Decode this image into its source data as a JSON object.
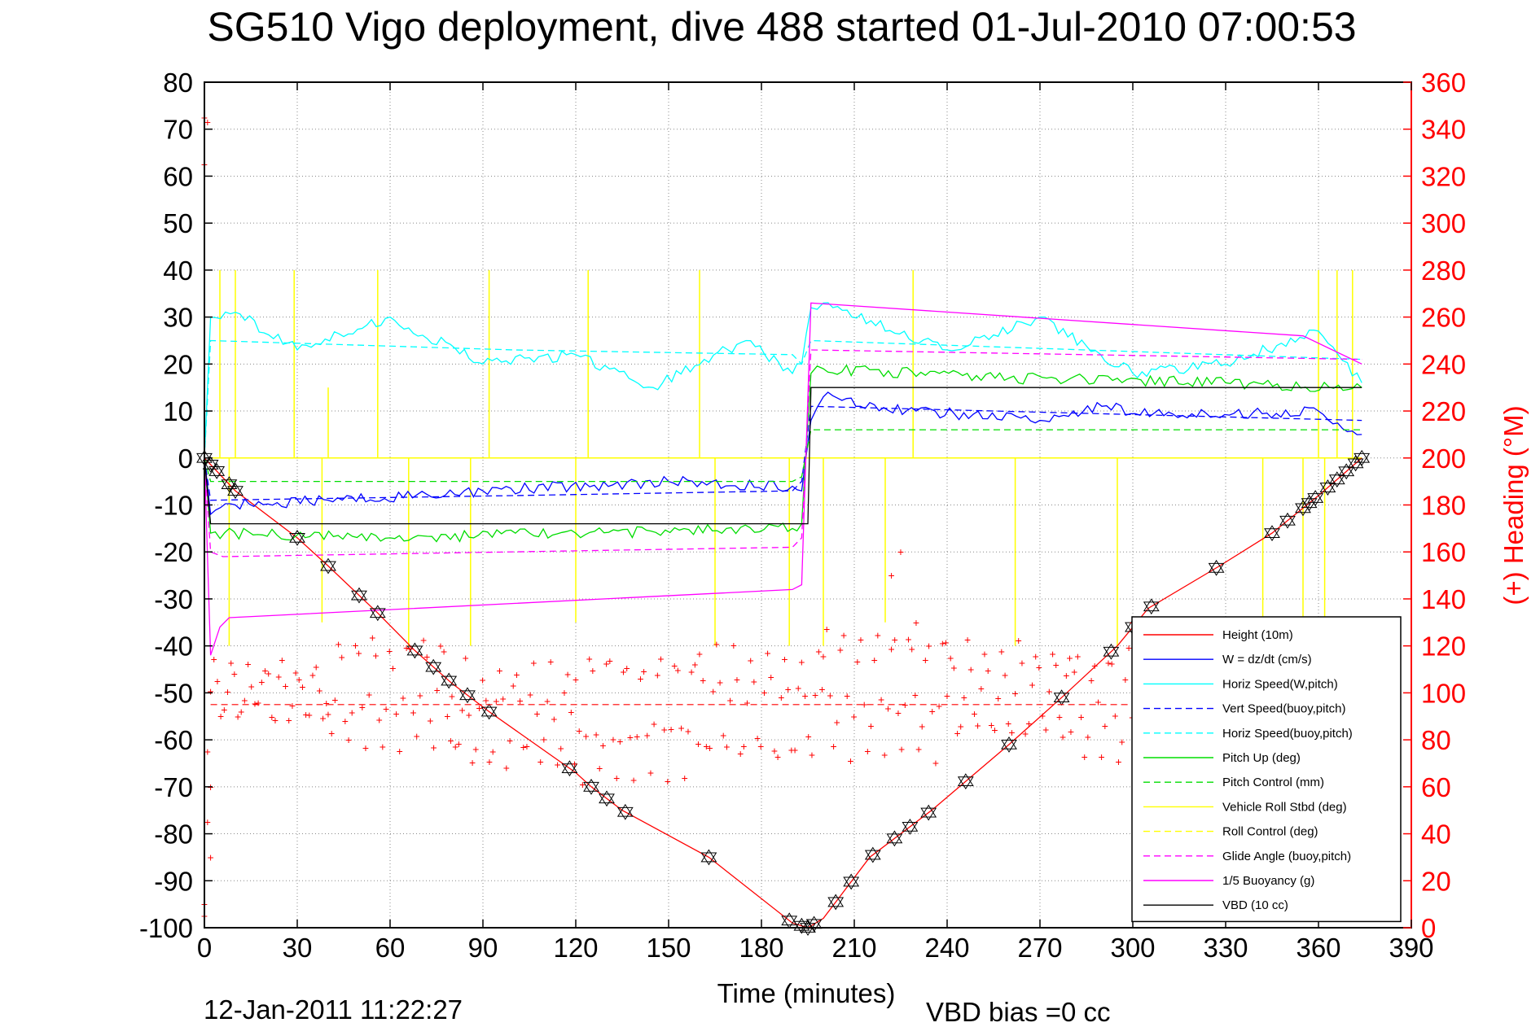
{
  "chart_data": {
    "type": "line",
    "title": "SG510 Vigo deployment, dive 488 started 01-Jul-2010 07:00:53",
    "xlabel": "Time (minutes)",
    "ylabel_right": "(+) Heading (°M)",
    "footer_date": "12-Jan-2011 11:22:27",
    "footer_vbd": "VBD bias =0 cc",
    "xlim": [
      0,
      390
    ],
    "ylim_left": [
      -100,
      80
    ],
    "ylim_right": [
      0,
      360
    ],
    "x_ticks": [
      0,
      30,
      60,
      90,
      120,
      150,
      180,
      210,
      240,
      270,
      300,
      330,
      360,
      390
    ],
    "y_ticks_left": [
      80,
      70,
      60,
      50,
      40,
      30,
      20,
      10,
      0,
      -10,
      -20,
      -30,
      -40,
      -50,
      -60,
      -70,
      -80,
      -90,
      -100
    ],
    "y_ticks_right": [
      360,
      340,
      320,
      300,
      280,
      260,
      240,
      220,
      200,
      180,
      160,
      140,
      120,
      100,
      80,
      60,
      40,
      20,
      0
    ],
    "grid": true,
    "legend_position": "bottom-right",
    "colors": {
      "height": "#ff0000",
      "w": "#0000ff",
      "horiz_speed": "#00ffff",
      "pitch": "#00cc00",
      "roll": "#ffff00",
      "glide": "#ff00ff",
      "vbd": "#000000",
      "heading": "#ff0000"
    },
    "legend": [
      {
        "label": "Height (10m)",
        "color": "#ff0000",
        "dash": false
      },
      {
        "label": "W = dz/dt (cm/s)",
        "color": "#0000ff",
        "dash": false
      },
      {
        "label": "Horiz Speed(W,pitch)",
        "color": "#00ffff",
        "dash": false
      },
      {
        "label": "Vert Speed(buoy,pitch)",
        "color": "#0000ff",
        "dash": true
      },
      {
        "label": "Horiz Speed(buoy,pitch)",
        "color": "#00ffff",
        "dash": true
      },
      {
        "label": "Pitch Up (deg)",
        "color": "#00dd00",
        "dash": false
      },
      {
        "label": "Pitch Control (mm)",
        "color": "#00dd00",
        "dash": true
      },
      {
        "label": "Vehicle Roll Stbd (deg)",
        "color": "#ffff00",
        "dash": false
      },
      {
        "label": "Roll Control (deg)",
        "color": "#ffff00",
        "dash": true
      },
      {
        "label": "Glide Angle (buoy,pitch)",
        "color": "#ff00ff",
        "dash": true
      },
      {
        "label": "1/5 Buoyancy (g)",
        "color": "#ff00ff",
        "dash": false
      },
      {
        "label": "VBD (10 cc)",
        "color": "#000000",
        "dash": false
      }
    ],
    "series": [
      {
        "name": "Height (10m)",
        "axis": "left",
        "color": "#ff0000",
        "x": [
          0,
          10,
          30,
          40,
          56,
          68,
          80,
          92,
          120,
          125,
          135,
          163,
          190,
          195,
          200,
          215,
          235,
          260,
          277,
          295,
          305,
          328,
          345,
          360,
          374
        ],
        "y": [
          0,
          -7,
          -17,
          -23,
          -33,
          -41,
          -48,
          -54,
          -67,
          -70,
          -75,
          -85,
          -99,
          -100,
          -98,
          -85,
          -75,
          -61,
          -51,
          -40,
          -32,
          -23,
          -16,
          -8,
          0
        ]
      },
      {
        "name": "W = dz/dt (cm/s)",
        "axis": "left",
        "color": "#0000ff",
        "x": [
          0,
          2,
          10,
          40,
          90,
          150,
          190,
          193,
          196,
          200,
          230,
          270,
          290,
          310,
          360,
          374
        ],
        "y": [
          0,
          -12,
          -10,
          -9,
          -7,
          -5,
          -6,
          -7,
          8,
          13,
          10,
          8,
          11,
          9,
          10,
          5
        ]
      },
      {
        "name": "Horiz Speed(W,pitch)",
        "axis": "left",
        "color": "#00ffff",
        "x": [
          0,
          2,
          10,
          30,
          60,
          90,
          120,
          145,
          175,
          190,
          193,
          196,
          200,
          240,
          270,
          300,
          330,
          360,
          374
        ],
        "y": [
          0,
          30,
          31,
          23,
          30,
          20,
          22,
          15,
          25,
          18,
          20,
          32,
          33,
          23,
          30,
          18,
          20,
          27,
          16
        ]
      },
      {
        "name": "Vert Speed(buoy,pitch)",
        "axis": "left",
        "color": "#0000ff",
        "x": [
          0,
          2,
          100,
          190,
          193,
          196,
          374
        ],
        "y": [
          0,
          -9,
          -8,
          -7,
          -5,
          11,
          8
        ]
      },
      {
        "name": "Horiz Speed(buoy,pitch)",
        "axis": "left",
        "color": "#00ffff",
        "x": [
          0,
          2,
          100,
          190,
          193,
          196,
          374
        ],
        "y": [
          0,
          25,
          23,
          22,
          20,
          25,
          21
        ]
      },
      {
        "name": "Pitch Up (deg)",
        "axis": "left",
        "color": "#00dd00",
        "x": [
          0,
          2,
          60,
          120,
          190,
          193,
          196,
          200,
          260,
          330,
          374
        ],
        "y": [
          0,
          -16,
          -17,
          -16,
          -15,
          -14,
          18,
          19,
          17,
          16,
          15
        ]
      },
      {
        "name": "Pitch Control (mm)",
        "axis": "left",
        "color": "#00dd00",
        "x": [
          0,
          2,
          190,
          193,
          196,
          374
        ],
        "y": [
          0,
          -5,
          -5,
          -4,
          6,
          6
        ]
      },
      {
        "name": "Vehicle Roll Stbd (deg)",
        "axis": "left",
        "color": "#ffff00",
        "x": [
          0,
          374
        ],
        "y": [
          0,
          0
        ]
      },
      {
        "name": "Glide Angle (buoy,pitch)",
        "axis": "left",
        "color": "#ff00ff",
        "x": [
          0,
          2,
          6,
          190,
          193,
          196,
          374
        ],
        "y": [
          0,
          -20,
          -21,
          -19,
          -17,
          23,
          21
        ]
      },
      {
        "name": "1/5 Buoyancy (g)",
        "axis": "left",
        "color": "#ff00ff",
        "x": [
          0,
          2,
          5,
          8,
          190,
          193,
          196,
          355,
          374
        ],
        "y": [
          0,
          -42,
          -36,
          -34,
          -28,
          -27,
          33,
          26,
          20
        ]
      },
      {
        "name": "VBD (10 cc)",
        "axis": "left",
        "color": "#000000",
        "x": [
          0,
          2,
          192,
          195,
          196,
          374
        ],
        "y": [
          0,
          -14,
          -14,
          -14,
          15,
          15
        ]
      }
    ],
    "roll_spikes": [
      {
        "x": 5,
        "y": 40
      },
      {
        "x": 10,
        "y": 40
      },
      {
        "x": 29,
        "y": 40
      },
      {
        "x": 40,
        "y": 15
      },
      {
        "x": 56,
        "y": 40
      },
      {
        "x": 92,
        "y": 40
      },
      {
        "x": 124,
        "y": 40
      },
      {
        "x": 160,
        "y": 40
      },
      {
        "x": 229,
        "y": 40
      },
      {
        "x": 360,
        "y": 40
      },
      {
        "x": 366,
        "y": 40
      },
      {
        "x": 371,
        "y": 40
      },
      {
        "x": 8,
        "y": -40
      },
      {
        "x": 38,
        "y": -35
      },
      {
        "x": 66,
        "y": -40
      },
      {
        "x": 86,
        "y": -40
      },
      {
        "x": 120,
        "y": -35
      },
      {
        "x": 165,
        "y": -40
      },
      {
        "x": 189,
        "y": -40
      },
      {
        "x": 200,
        "y": -40
      },
      {
        "x": 220,
        "y": -35
      },
      {
        "x": 262,
        "y": -40
      },
      {
        "x": 295,
        "y": -40
      },
      {
        "x": 342,
        "y": -35
      },
      {
        "x": 355,
        "y": -35
      },
      {
        "x": 362,
        "y": -40
      }
    ],
    "heading": {
      "axis": "right",
      "mean": 95,
      "outliers": [
        [
          0,
          345
        ],
        [
          1,
          343
        ],
        [
          0,
          325
        ],
        [
          1,
          75
        ],
        [
          2,
          60
        ],
        [
          1,
          45
        ],
        [
          0,
          5
        ],
        [
          0,
          10
        ],
        [
          2,
          30
        ],
        [
          225,
          160
        ],
        [
          222,
          150
        ],
        [
          230,
          130
        ],
        [
          300,
          130
        ],
        [
          340,
          130
        ],
        [
          355,
          125
        ]
      ],
      "waves": [
        {
          "x0": 2,
          "x1": 40,
          "center": 100,
          "amp": 10
        },
        {
          "x0": 40,
          "x1": 80,
          "center": 100,
          "amp": 22
        },
        {
          "x0": 80,
          "x1": 120,
          "center": 90,
          "amp": 20
        },
        {
          "x0": 120,
          "x1": 160,
          "center": 90,
          "amp": 25
        },
        {
          "x0": 160,
          "x1": 200,
          "center": 95,
          "amp": 22
        },
        {
          "x0": 200,
          "x1": 240,
          "center": 100,
          "amp": 25
        },
        {
          "x0": 240,
          "x1": 280,
          "center": 100,
          "amp": 20
        },
        {
          "x0": 280,
          "x1": 320,
          "center": 95,
          "amp": 22
        },
        {
          "x0": 320,
          "x1": 374,
          "center": 100,
          "amp": 20
        }
      ]
    },
    "height_markers": [
      0,
      2,
      4,
      8,
      10,
      30,
      40,
      50,
      56,
      68,
      74,
      79,
      85,
      92,
      118,
      125,
      130,
      136,
      163,
      189,
      193,
      195,
      197,
      204,
      209,
      216,
      223,
      228,
      234,
      246,
      260,
      277,
      293,
      300,
      306,
      327,
      345,
      350,
      355,
      357,
      359,
      363,
      366,
      369,
      372,
      374
    ]
  }
}
